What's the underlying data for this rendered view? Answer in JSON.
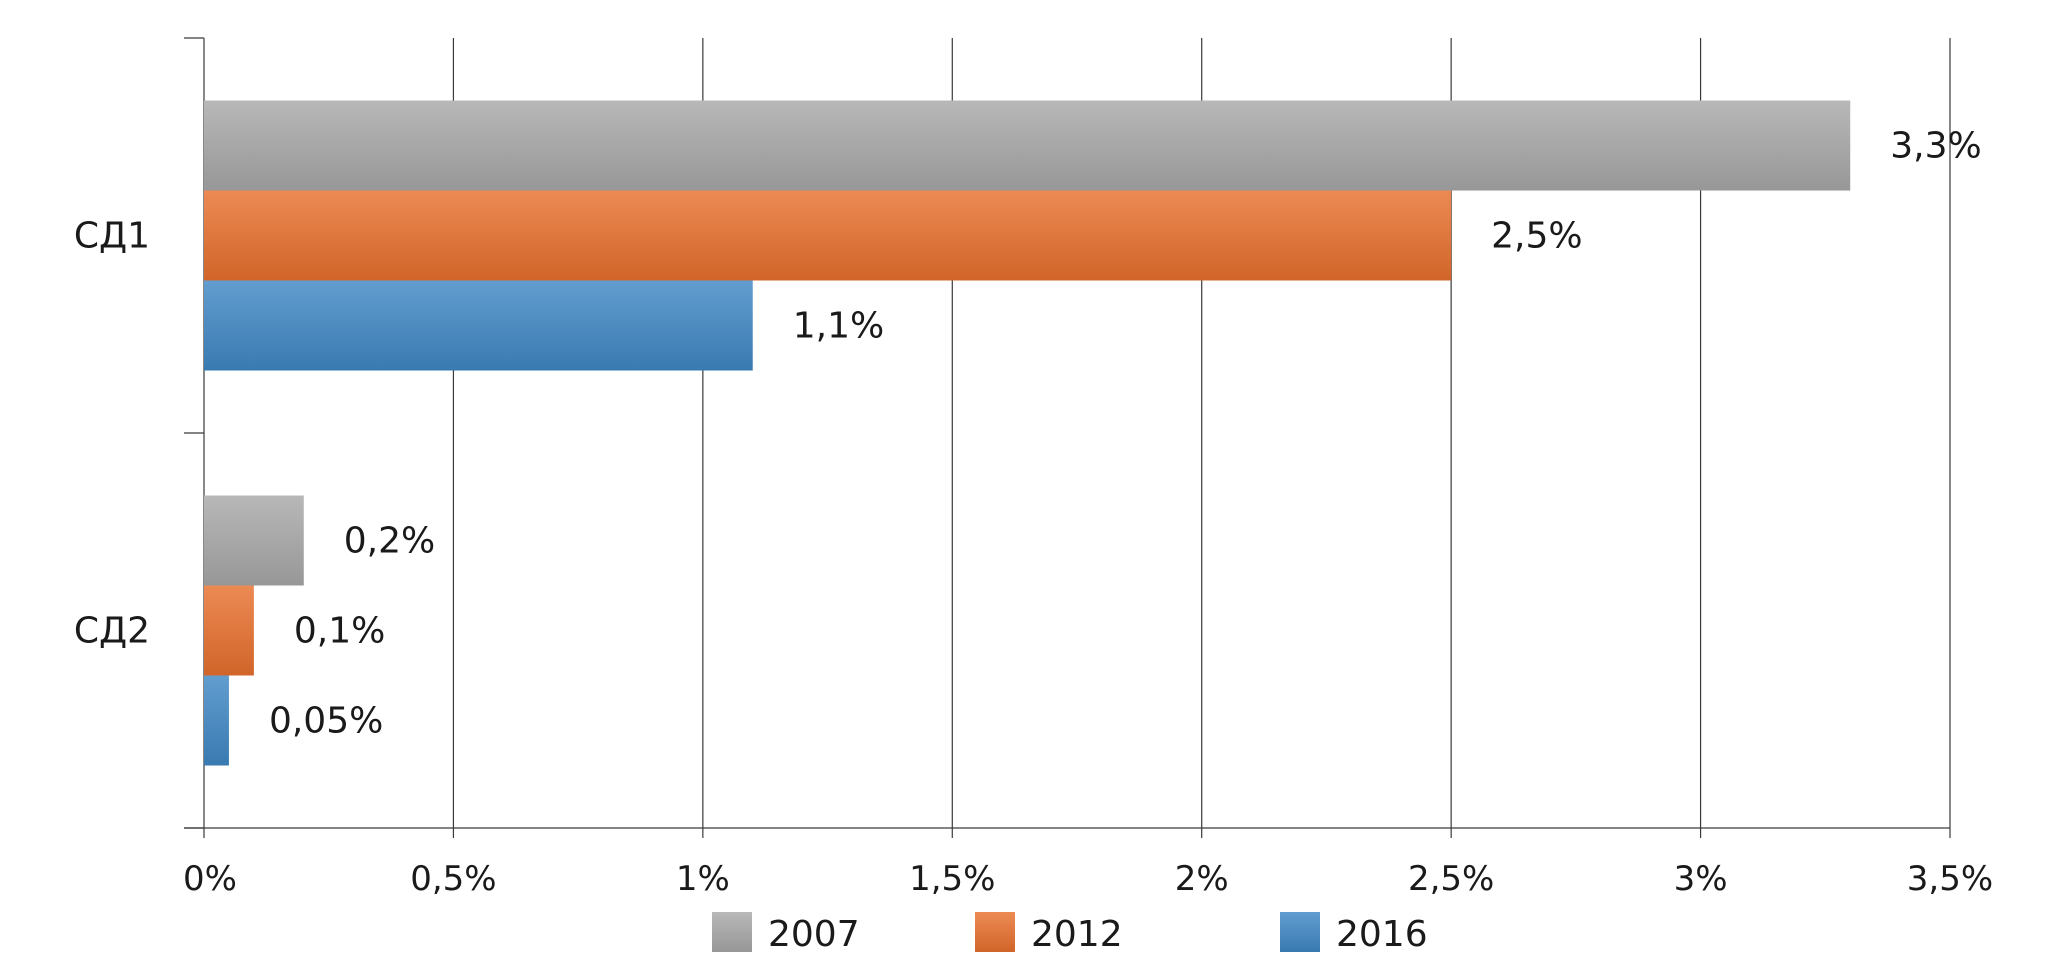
{
  "chart_data": {
    "type": "bar",
    "orientation": "horizontal",
    "categories": [
      "СД1",
      "СД2"
    ],
    "series": [
      {
        "name": "2007",
        "values": [
          3.3,
          0.2
        ],
        "labels": [
          "3,3%",
          "0,2%"
        ],
        "color": "#a8a8a8"
      },
      {
        "name": "2012",
        "values": [
          2.5,
          0.1
        ],
        "labels": [
          "2,5%",
          "0,1%"
        ],
        "color": "#e8702e"
      },
      {
        "name": "2016",
        "values": [
          1.1,
          0.05
        ],
        "labels": [
          "1,1%",
          "0,05%"
        ],
        "color": "#3f88c5"
      }
    ],
    "xlim": [
      0,
      3.5
    ],
    "x_ticks": [
      0,
      0.5,
      1,
      1.5,
      2,
      2.5,
      3,
      3.5
    ],
    "x_tick_labels": [
      "0%",
      "0,5%",
      "1%",
      "1,5%",
      "2%",
      "2,5%",
      "3%",
      "3,5%"
    ],
    "grid": "vertical",
    "legend_position": "bottom",
    "title": "",
    "xlabel": "",
    "ylabel": ""
  }
}
